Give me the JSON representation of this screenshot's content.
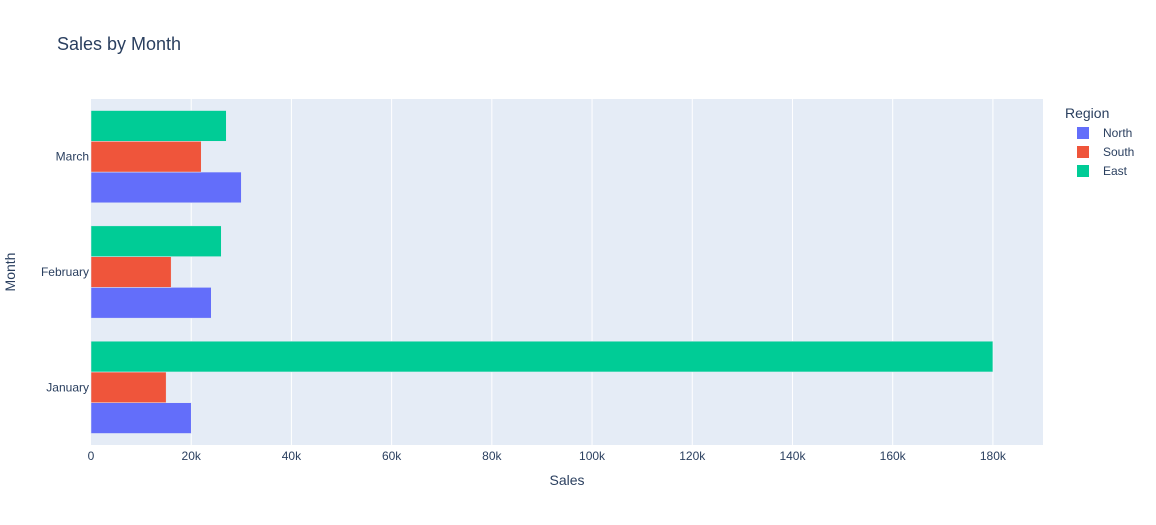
{
  "chart_data": {
    "type": "bar",
    "orientation": "horizontal",
    "title": "Sales by Month",
    "xlabel": "Sales",
    "ylabel": "Month",
    "categories": [
      "January",
      "February",
      "March"
    ],
    "xlim": [
      0,
      190000
    ],
    "xticks": [
      0,
      20000,
      40000,
      60000,
      80000,
      100000,
      120000,
      140000,
      160000,
      180000
    ],
    "xtick_labels": [
      "0",
      "20k",
      "40k",
      "60k",
      "80k",
      "100k",
      "120k",
      "140k",
      "160k",
      "180k"
    ],
    "grid": true,
    "legend": {
      "title": "Region",
      "placement": "top-right"
    },
    "series": [
      {
        "name": "North",
        "color": "#636efa",
        "values": [
          20000,
          24000,
          30000
        ]
      },
      {
        "name": "South",
        "color": "#ef553b",
        "values": [
          15000,
          16000,
          22000
        ]
      },
      {
        "name": "East",
        "color": "#00cc96",
        "values": [
          180000,
          26000,
          27000
        ]
      }
    ]
  }
}
